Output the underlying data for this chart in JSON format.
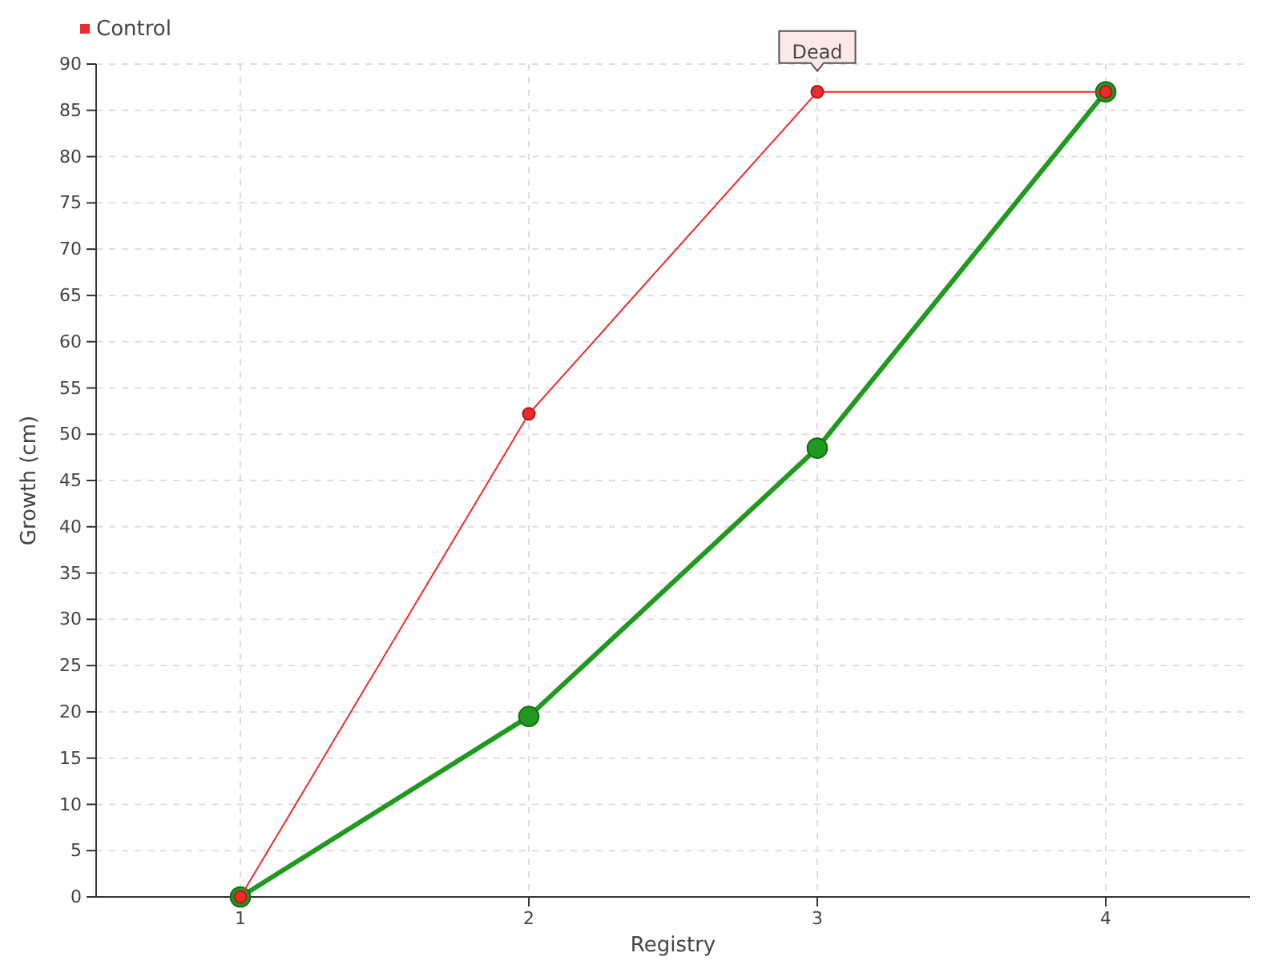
{
  "chart_data": {
    "type": "line",
    "xlabel": "Registry",
    "ylabel": "Growth (cm)",
    "x": [
      1,
      2,
      3,
      4
    ],
    "xlim": [
      0.5,
      4.5
    ],
    "xticks": [
      1,
      2,
      3,
      4
    ],
    "ylim": [
      0,
      90
    ],
    "yticks": [
      0,
      5,
      10,
      15,
      20,
      25,
      30,
      35,
      40,
      45,
      50,
      55,
      60,
      65,
      70,
      75,
      80,
      85,
      90
    ],
    "series": [
      {
        "color": "#1f9a1f",
        "values": [
          0,
          19.5,
          48.5,
          87
        ]
      },
      {
        "name": "Control",
        "color": "#ee2a2a",
        "values": [
          0,
          52.2,
          87,
          87
        ]
      }
    ],
    "annotations": [
      {
        "text": "Dead",
        "x": 3,
        "y": 87
      }
    ],
    "grid": true,
    "legend": "top left",
    "marker": "circle",
    "line_style": "solid"
  }
}
